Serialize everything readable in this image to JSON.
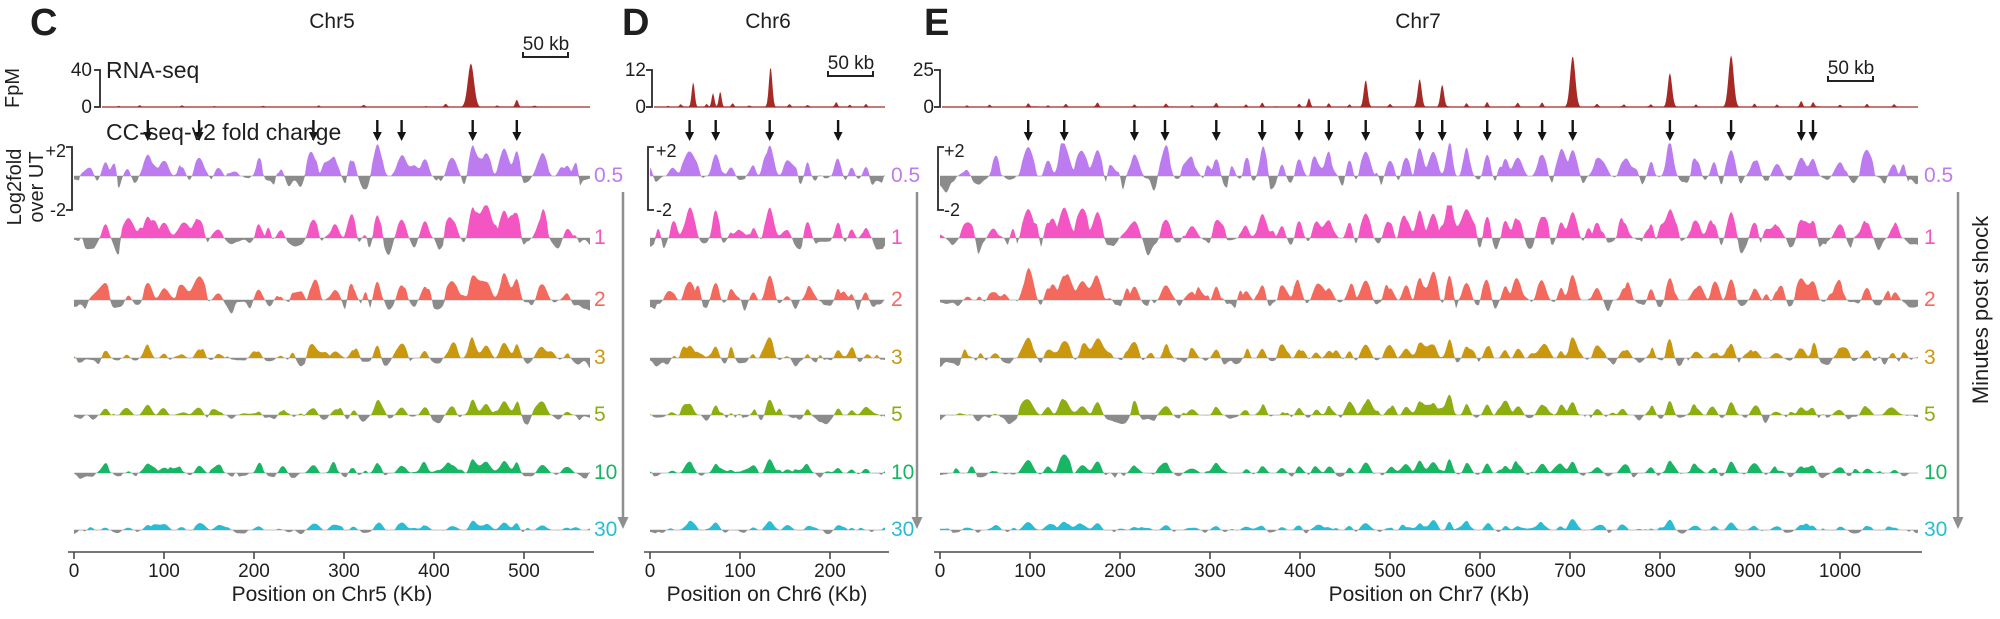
{
  "labels": {
    "rna_track": "RNA-seq",
    "cc_track": "CC-seq-v2 fold change",
    "left_axis_line1": "Log2fold",
    "left_axis_line2": "over UT",
    "fpm": "FpM",
    "right_axis": "Minutes post shock",
    "scale_bar": "50 kb",
    "plus2": "+2",
    "minus2": "-2",
    "zero": "0"
  },
  "colors": {
    "rna": "#a52a25",
    "gray_signal": "#8b8b8b",
    "black_arrow": "#141414",
    "gray_arrow": "#8f8f8f",
    "axis": "#4a4a4a",
    "bracket": "#2a2a2a",
    "baseline": "#c4c4c4",
    "text": "#1f1f1f"
  },
  "timepoints": [
    {
      "label": "0.5",
      "color": "#bd7bf0",
      "pos_scale": 1.0,
      "neg_scale": 0.85
    },
    {
      "label": "1",
      "color": "#f356c3",
      "pos_scale": 1.0,
      "neg_scale": 1.0
    },
    {
      "label": "2",
      "color": "#f4695e",
      "pos_scale": 0.8,
      "neg_scale": 0.75
    },
    {
      "label": "3",
      "color": "#c9980f",
      "pos_scale": 0.55,
      "neg_scale": 0.55
    },
    {
      "label": "5",
      "color": "#8dad10",
      "pos_scale": 0.5,
      "neg_scale": 0.48
    },
    {
      "label": "10",
      "color": "#17b564",
      "pos_scale": 0.45,
      "neg_scale": 0.33
    },
    {
      "label": "30",
      "color": "#28bdd2",
      "pos_scale": 0.3,
      "neg_scale": 0.22
    }
  ],
  "chart_data": [
    {
      "panel": "C",
      "type": "area",
      "chromosome": "Chr5",
      "xlabel": "Position on Chr5 (Kb)",
      "x_ticks": [
        0,
        100,
        200,
        300,
        400,
        500
      ],
      "x_max_kb": 573,
      "noise_seed": 11,
      "rna": {
        "label": "RNA-seq",
        "ylabel": "FpM",
        "y_max": 40,
        "peaks_kb_fpm": [
          [
            23,
            1.5
          ],
          [
            50,
            1
          ],
          [
            73,
            2
          ],
          [
            120,
            1.5
          ],
          [
            156,
            1
          ],
          [
            210,
            0.8
          ],
          [
            272,
            1.8
          ],
          [
            322,
            2
          ],
          [
            391,
            1
          ],
          [
            413,
            3
          ],
          [
            441,
            47
          ],
          [
            470,
            1.5
          ],
          [
            492,
            8
          ],
          [
            512,
            1
          ],
          [
            540,
            0.6
          ]
        ]
      },
      "arrows_kb": [
        82,
        139,
        266,
        337,
        364,
        443,
        492
      ],
      "cc_hotspots_kb_amp": [
        [
          35,
          0.45
        ],
        [
          60,
          0.3
        ],
        [
          82,
          0.7
        ],
        [
          100,
          0.5
        ],
        [
          120,
          0.35
        ],
        [
          139,
          0.6
        ],
        [
          160,
          0.3
        ],
        [
          205,
          0.45
        ],
        [
          230,
          0.3
        ],
        [
          266,
          0.6
        ],
        [
          290,
          0.45
        ],
        [
          310,
          0.5
        ],
        [
          337,
          0.75
        ],
        [
          364,
          0.6
        ],
        [
          390,
          0.55
        ],
        [
          420,
          0.6
        ],
        [
          443,
          1.0
        ],
        [
          458,
          0.75
        ],
        [
          478,
          0.9
        ],
        [
          492,
          0.8
        ],
        [
          520,
          0.65
        ],
        [
          548,
          0.35
        ]
      ]
    },
    {
      "panel": "D",
      "type": "area",
      "chromosome": "Chr6",
      "xlabel": "Position on Chr6 (Kb)",
      "x_ticks": [
        0,
        100,
        200
      ],
      "x_max_kb": 261,
      "noise_seed": 47,
      "rna": {
        "label": "RNA-seq",
        "ylabel": "FpM",
        "y_max": 12,
        "peaks_kb_fpm": [
          [
            20,
            0.4
          ],
          [
            34,
            0.8
          ],
          [
            48,
            8
          ],
          [
            63,
            1
          ],
          [
            70,
            4.5
          ],
          [
            78,
            5
          ],
          [
            92,
            1.2
          ],
          [
            110,
            0.5
          ],
          [
            134,
            13
          ],
          [
            155,
            0.8
          ],
          [
            175,
            0.6
          ],
          [
            207,
            1.5
          ],
          [
            222,
            0.7
          ],
          [
            240,
            1
          ]
        ]
      },
      "arrows_kb": [
        44,
        73,
        133,
        209
      ],
      "cc_hotspots_kb_amp": [
        [
          25,
          0.3
        ],
        [
          44,
          0.75
        ],
        [
          73,
          0.7
        ],
        [
          90,
          0.3
        ],
        [
          115,
          0.35
        ],
        [
          133,
          1.0
        ],
        [
          152,
          0.3
        ],
        [
          175,
          0.45
        ],
        [
          209,
          0.5
        ],
        [
          224,
          0.3
        ],
        [
          240,
          0.35
        ]
      ]
    },
    {
      "panel": "E",
      "type": "area",
      "chromosome": "Chr7",
      "xlabel": "Position on Chr7 (Kb)",
      "x_ticks": [
        0,
        100,
        200,
        300,
        400,
        500,
        600,
        700,
        800,
        900,
        1000
      ],
      "x_max_kb": 1087,
      "noise_seed": 83,
      "rna": {
        "label": "RNA-seq",
        "ylabel": "FpM",
        "y_max": 25,
        "peaks_kb_fpm": [
          [
            30,
            1.2
          ],
          [
            55,
            1.6
          ],
          [
            98,
            2.5
          ],
          [
            120,
            1.2
          ],
          [
            140,
            2
          ],
          [
            175,
            2.8
          ],
          [
            216,
            1.8
          ],
          [
            251,
            2.2
          ],
          [
            280,
            1.3
          ],
          [
            307,
            2.6
          ],
          [
            340,
            1.8
          ],
          [
            358,
            3
          ],
          [
            399,
            2.2
          ],
          [
            410,
            6
          ],
          [
            432,
            2.6
          ],
          [
            455,
            1.8
          ],
          [
            473,
            18
          ],
          [
            500,
            1.8
          ],
          [
            533,
            19
          ],
          [
            558,
            15
          ],
          [
            585,
            2.6
          ],
          [
            608,
            3.2
          ],
          [
            642,
            2.6
          ],
          [
            669,
            3
          ],
          [
            703,
            34
          ],
          [
            730,
            1.8
          ],
          [
            760,
            1.8
          ],
          [
            790,
            1.8
          ],
          [
            811,
            23
          ],
          [
            840,
            1.8
          ],
          [
            879,
            35
          ],
          [
            905,
            2.4
          ],
          [
            930,
            1.6
          ],
          [
            957,
            4
          ],
          [
            970,
            3.2
          ],
          [
            1000,
            1.6
          ],
          [
            1030,
            2.2
          ],
          [
            1060,
            1.8
          ]
        ]
      },
      "arrows_kb": [
        98,
        138,
        216,
        250,
        307,
        358,
        399,
        432,
        473,
        533,
        558,
        608,
        642,
        669,
        703,
        811,
        879,
        957,
        970
      ],
      "cc_hotspots_kb_amp": [
        [
          30,
          0.3
        ],
        [
          60,
          0.35
        ],
        [
          98,
          0.95
        ],
        [
          120,
          0.5
        ],
        [
          138,
          1.0
        ],
        [
          158,
          0.6
        ],
        [
          175,
          0.85
        ],
        [
          216,
          0.55
        ],
        [
          251,
          0.6
        ],
        [
          280,
          0.4
        ],
        [
          307,
          0.55
        ],
        [
          340,
          0.4
        ],
        [
          358,
          0.6
        ],
        [
          380,
          0.4
        ],
        [
          399,
          0.55
        ],
        [
          418,
          0.45
        ],
        [
          432,
          0.5
        ],
        [
          455,
          0.5
        ],
        [
          473,
          0.8
        ],
        [
          500,
          0.5
        ],
        [
          518,
          0.6
        ],
        [
          533,
          0.9
        ],
        [
          548,
          0.8
        ],
        [
          566,
          1.0
        ],
        [
          585,
          0.7
        ],
        [
          608,
          0.7
        ],
        [
          628,
          0.55
        ],
        [
          642,
          0.6
        ],
        [
          669,
          0.7
        ],
        [
          690,
          0.5
        ],
        [
          703,
          0.85
        ],
        [
          730,
          0.5
        ],
        [
          760,
          0.5
        ],
        [
          790,
          0.45
        ],
        [
          811,
          0.9
        ],
        [
          840,
          0.5
        ],
        [
          860,
          0.45
        ],
        [
          879,
          0.85
        ],
        [
          905,
          0.5
        ],
        [
          930,
          0.4
        ],
        [
          957,
          0.6
        ],
        [
          970,
          0.55
        ],
        [
          1000,
          0.45
        ],
        [
          1030,
          0.5
        ],
        [
          1060,
          0.4
        ]
      ]
    }
  ]
}
